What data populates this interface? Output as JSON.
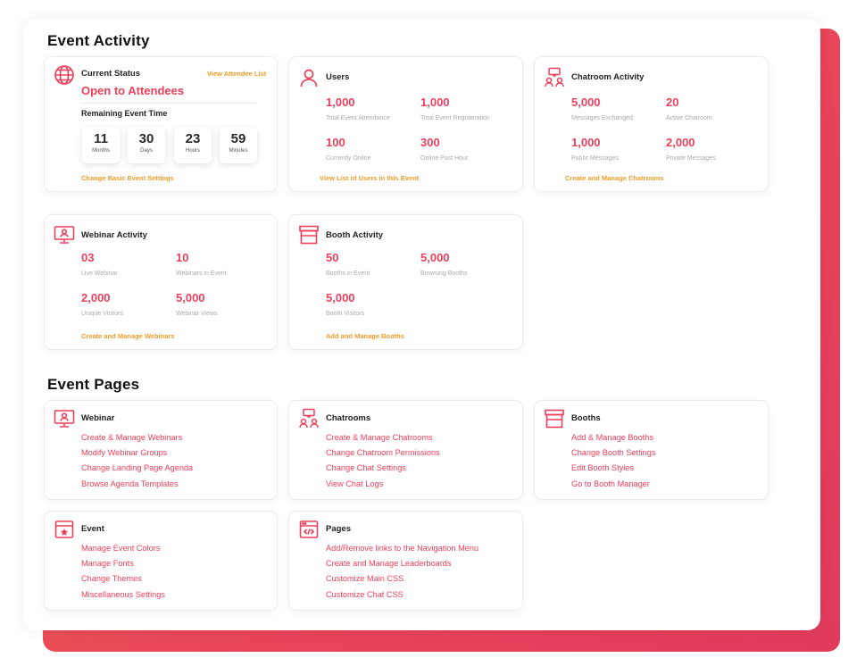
{
  "event_activity": {
    "title": "Event Activity",
    "current_status": {
      "title": "Current Status",
      "view_link": "View Attendee List",
      "status": "Open to Attendees",
      "remaining_label": "Remaining Event Time",
      "timer": [
        {
          "value": "11",
          "unit": "Months"
        },
        {
          "value": "30",
          "unit": "Days"
        },
        {
          "value": "23",
          "unit": "Hours"
        },
        {
          "value": "59",
          "unit": "Minutes"
        }
      ],
      "footer_link": "Change Basic Event Settings"
    },
    "users": {
      "title": "Users",
      "stats": [
        {
          "value": "1,000",
          "label": "Total Event Attendance"
        },
        {
          "value": "1,000",
          "label": "Total Event Registeration"
        },
        {
          "value": "100",
          "label": "Currently Online"
        },
        {
          "value": "300",
          "label": "Online Past Hour"
        }
      ],
      "footer_link": "View List of Users in this Event"
    },
    "chatroom": {
      "title": "Chatroom Activity",
      "stats": [
        {
          "value": "5,000",
          "label": "Messages Exchanged"
        },
        {
          "value": "20",
          "label": "Active Chatroom"
        },
        {
          "value": "1,000",
          "label": "Public Messages"
        },
        {
          "value": "2,000",
          "label": "Private Messages"
        }
      ],
      "footer_link": "Create and Manage Chatrooms"
    },
    "webinar": {
      "title": "Webinar Activity",
      "stats": [
        {
          "value": "03",
          "label": "Live Webinar"
        },
        {
          "value": "10",
          "label": "Webinars in Event"
        },
        {
          "value": "2,000",
          "label": "Unique Visitors"
        },
        {
          "value": "5,000",
          "label": "Webinar Views"
        }
      ],
      "footer_link": "Create and Manage Webinars"
    },
    "booth": {
      "title": "Booth Activity",
      "stats": [
        {
          "value": "50",
          "label": "Booths in Event"
        },
        {
          "value": "5,000",
          "label": "Browsing Booths"
        },
        {
          "value": "5,000",
          "label": "Booth Visitors"
        }
      ],
      "footer_link": "Add and Manage Booths"
    }
  },
  "event_pages": {
    "title": "Event Pages",
    "webinar": {
      "title": "Webinar",
      "links": [
        "Create & Manage Webinars",
        "Modify Webinar Groups",
        "Change Landing Page Agenda",
        "Browse Agenda Templates"
      ]
    },
    "chatrooms": {
      "title": "Chatrooms",
      "links": [
        "Create & Manage Chatrooms",
        "Change Chatroom Permissions",
        "Change Chat Settings",
        "View Chat Logs"
      ]
    },
    "booths": {
      "title": "Booths",
      "links": [
        "Add & Manage Booths",
        "Change Booth Settings",
        "Edit Booth Styles",
        "Go to Booth Manager"
      ]
    },
    "event": {
      "title": "Event",
      "links": [
        "Manage Event Colors",
        "Manage Fonts",
        "Change Themes",
        "Miscellaneous Settings"
      ]
    },
    "pages": {
      "title": "Pages",
      "links": [
        "Add/Remove links to the Navigation Menu",
        "Create and Manage Leaderboards",
        "Customize Main CSS",
        "Customize Chat CSS"
      ]
    }
  },
  "colors": {
    "accent": "#ef3f5a",
    "link_orange": "#f39c2a",
    "gradient_start": "#f06a45",
    "gradient_end": "#e23a5c"
  },
  "icons": {
    "current_status": "globe-icon",
    "users": "user-icon",
    "chatroom": "chatroom-icon",
    "webinar": "webinar-screen-icon",
    "booth": "booth-icon",
    "event": "calendar-star-icon",
    "pages": "code-window-icon"
  }
}
